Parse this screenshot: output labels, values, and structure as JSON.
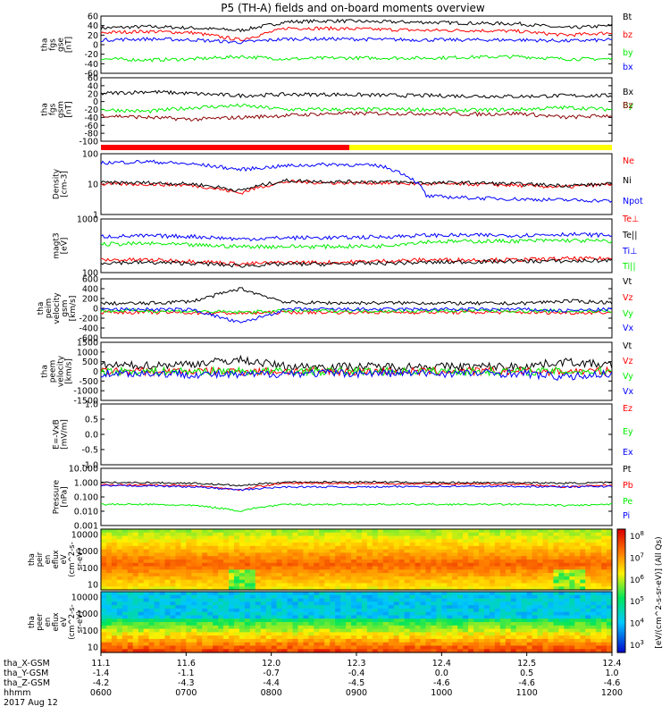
{
  "title": "P5 (TH-A) fields and on-board moments overview",
  "colors": {
    "black": "#000000",
    "red": "#ff0000",
    "green": "#00ee00",
    "blue": "#0000ff",
    "darkred": "#8b0000",
    "yellow": "#ffff00"
  },
  "status_bar": {
    "segments": [
      {
        "from": "06:00",
        "to": "08:55",
        "color": "red"
      },
      {
        "from": "08:55",
        "to": "12:00",
        "color": "yellow"
      }
    ]
  },
  "chart_data": {
    "type": "line",
    "time_range": [
      "2017-08-12 06:00",
      "2017-08-12 12:00"
    ],
    "grid": false,
    "panels": [
      {
        "id": "fgs",
        "ylabel": [
          "tha",
          "fgs",
          "gse",
          "[nT]"
        ],
        "ylim": [
          -60,
          60
        ],
        "ticks": [
          "60",
          "40",
          "20",
          "0",
          "-20",
          "-40",
          "-60"
        ],
        "series": [
          {
            "name": "Bt",
            "color": "black",
            "values": [
              35,
              38,
              35,
              30,
              48,
              50,
              48,
              47,
              45,
              44,
              35,
              40
            ]
          },
          {
            "name": "bz",
            "color": "red",
            "values": [
              25,
              28,
              25,
              10,
              35,
              34,
              32,
              30,
              30,
              28,
              20,
              25
            ]
          },
          {
            "name": "by",
            "color": "green",
            "values": [
              -30,
              -32,
              -30,
              -25,
              -30,
              -28,
              -28,
              -28,
              -26,
              -25,
              -30,
              -30
            ]
          },
          {
            "name": "bx",
            "color": "blue",
            "values": [
              10,
              12,
              10,
              5,
              12,
              12,
              11,
              10,
              10,
              10,
              8,
              10
            ]
          }
        ]
      },
      {
        "id": "fgs_gsm",
        "ylabel": [
          "tha",
          "fgs",
          "gsm",
          "[nT]"
        ],
        "ylim": [
          -100,
          60
        ],
        "ticks": [
          "60",
          "40",
          "20",
          "0",
          "-20",
          "-40",
          "-60",
          "-80",
          "-100"
        ],
        "series": [
          {
            "name": "Bx",
            "color": "black",
            "values": [
              20,
              25,
              20,
              15,
              18,
              18,
              16,
              15,
              14,
              13,
              15,
              15
            ]
          },
          {
            "name": "By",
            "color": "green",
            "values": [
              -20,
              -25,
              -15,
              -10,
              -20,
              -20,
              -20,
              -20,
              -22,
              -20,
              -15,
              -20
            ]
          },
          {
            "name": "Bz",
            "color": "darkred",
            "values": [
              -35,
              -40,
              -45,
              -40,
              -35,
              -30,
              -30,
              -30,
              -32,
              -30,
              -40,
              -35
            ]
          }
        ]
      },
      {
        "id": "density",
        "ylabel": [
          "Density",
          "[cm-3]"
        ],
        "scale": "log",
        "ylim": [
          1,
          100
        ],
        "ticks": [
          "100",
          "10",
          "1"
        ],
        "series": [
          {
            "name": "Ne",
            "color": "red",
            "values": [
              10,
              10,
              9,
              5,
              12,
              11,
              11,
              10,
              10,
              9,
              8,
              10
            ]
          },
          {
            "name": "Ni",
            "color": "black",
            "values": [
              11,
              11,
              10,
              6,
              13,
              12,
              12,
              11,
              11,
              10,
              9,
              10
            ]
          },
          {
            "name": "Npot",
            "color": "blue",
            "values": [
              50,
              55,
              45,
              30,
              40,
              45,
              40,
              4,
              3.5,
              3.2,
              3,
              2.8
            ]
          }
        ]
      },
      {
        "id": "temperature",
        "ylabel": [
          "magt3",
          "[eV]"
        ],
        "scale": "log",
        "ylim": [
          50,
          2000
        ],
        "ticks": [
          "1000",
          "100"
        ],
        "series": [
          {
            "name": "Te⊥",
            "color": "red",
            "values": [
              120,
              120,
              110,
              90,
              100,
              100,
              110,
              120,
              120,
              120,
              130,
              130
            ]
          },
          {
            "name": "Te||",
            "color": "black",
            "values": [
              100,
              100,
              95,
              80,
              90,
              90,
              95,
              100,
              105,
              110,
              110,
              115
            ]
          },
          {
            "name": "Ti⊥",
            "color": "blue",
            "values": [
              600,
              620,
              600,
              500,
              550,
              550,
              580,
              650,
              650,
              650,
              700,
              650
            ]
          },
          {
            "name": "Ti||",
            "color": "green",
            "values": [
              350,
              370,
              330,
              300,
              300,
              300,
              310,
              420,
              430,
              440,
              460,
              430
            ]
          }
        ]
      },
      {
        "id": "peim_velocity",
        "ylabel": [
          "tha",
          "peim",
          "velocity",
          "gsm",
          "[km/s]"
        ],
        "ylim": [
          -600,
          600
        ],
        "ticks": [
          "600",
          "400",
          "200",
          "0",
          "-200",
          "-400",
          "-600"
        ],
        "series": [
          {
            "name": "Vt",
            "color": "black",
            "values": [
              100,
              100,
              150,
              400,
              120,
              110,
              110,
              110,
              100,
              100,
              150,
              120
            ]
          },
          {
            "name": "Vz",
            "color": "red",
            "values": [
              -80,
              -80,
              -90,
              -100,
              -80,
              -80,
              -80,
              -80,
              -80,
              -80,
              -90,
              -80
            ]
          },
          {
            "name": "Vy",
            "color": "green",
            "values": [
              -50,
              -50,
              -60,
              -80,
              -50,
              -50,
              -50,
              -50,
              -50,
              -50,
              -60,
              -50
            ]
          },
          {
            "name": "Vx",
            "color": "blue",
            "values": [
              -20,
              -20,
              -30,
              -300,
              -20,
              -20,
              -20,
              -20,
              -20,
              -20,
              -50,
              -20
            ]
          }
        ]
      },
      {
        "id": "peem_velocity",
        "ylabel": [
          "tha",
          "peem",
          "velocity",
          "[km/s]"
        ],
        "ylim": [
          -1500,
          1500
        ],
        "ticks": [
          "1500",
          "1000",
          "500",
          "0",
          "-500",
          "-1000",
          "-1500"
        ],
        "series": [
          {
            "name": "Vt",
            "color": "black",
            "values": [
              300,
              300,
              400,
              600,
              250,
              250,
              250,
              250,
              250,
              250,
              500,
              300
            ]
          },
          {
            "name": "Vz",
            "color": "red",
            "values": [
              0,
              0,
              0,
              0,
              0,
              0,
              0,
              0,
              0,
              0,
              0,
              0
            ]
          },
          {
            "name": "Vy",
            "color": "green",
            "values": [
              0,
              0,
              0,
              0,
              0,
              0,
              0,
              0,
              0,
              0,
              0,
              0
            ]
          },
          {
            "name": "Vx",
            "color": "blue",
            "values": [
              -100,
              -100,
              -150,
              -200,
              -100,
              -100,
              -100,
              -100,
              -100,
              -100,
              -300,
              -100
            ]
          }
        ]
      },
      {
        "id": "efield",
        "ylabel": [
          "E=-VxB",
          "[mV/m]"
        ],
        "ylim": [
          -1,
          1
        ],
        "ticks": [
          "1.0",
          "0.5",
          "0.0",
          "-0.5",
          "-1.0"
        ],
        "series": [
          {
            "name": "Ez",
            "color": "red",
            "values": []
          },
          {
            "name": "Ey",
            "color": "green",
            "values": []
          },
          {
            "name": "Ex",
            "color": "blue",
            "values": []
          }
        ]
      },
      {
        "id": "pressure",
        "ylabel": [
          "Pressure",
          "[nPa]"
        ],
        "scale": "log",
        "ylim": [
          0.001,
          10
        ],
        "ticks": [
          "10.000",
          "1.000",
          "0.100",
          "0.010",
          "0.001"
        ],
        "series": [
          {
            "name": "Pt",
            "color": "black",
            "values": [
              1.0,
              1.0,
              0.9,
              0.6,
              1.1,
              1.1,
              1.1,
              1.0,
              1.0,
              1.0,
              0.9,
              1.0
            ]
          },
          {
            "name": "Pb",
            "color": "red",
            "values": [
              0.7,
              0.7,
              0.6,
              0.3,
              0.9,
              0.9,
              0.85,
              0.8,
              0.8,
              0.75,
              0.5,
              0.7
            ]
          },
          {
            "name": "Pe",
            "color": "green",
            "values": [
              0.03,
              0.03,
              0.025,
              0.01,
              0.03,
              0.03,
              0.03,
              0.03,
              0.03,
              0.03,
              0.025,
              0.03
            ]
          },
          {
            "name": "Pi",
            "color": "blue",
            "values": [
              0.6,
              0.6,
              0.5,
              0.3,
              0.5,
              0.5,
              0.5,
              0.55,
              0.55,
              0.55,
              0.5,
              0.55
            ]
          }
        ]
      }
    ],
    "spectrograms": [
      {
        "id": "peir",
        "ylabel": [
          "tha",
          "peir",
          "en",
          "eflux",
          "eV",
          "(cm^2-s-",
          "sr-eV)"
        ],
        "ylim": [
          5,
          30000
        ],
        "ticks": [
          "10000",
          "1000",
          "100",
          "10"
        ]
      },
      {
        "id": "peer",
        "ylabel": [
          "tha",
          "peer",
          "en",
          "eflux",
          "eV",
          "(cm^2-s-",
          "sr-eV)"
        ],
        "ylim": [
          5,
          30000
        ],
        "ticks": [
          "10000",
          "1000",
          "100",
          "10"
        ]
      }
    ],
    "colorbar": {
      "label": "[eV/(cm^2-s-sr-eV)] (All Qs)",
      "ticks": [
        "10^8",
        "10^7",
        "10^6",
        "10^5",
        "10^4",
        "10^3"
      ]
    },
    "x_axis": {
      "rows": [
        {
          "label": "tha_X-GSM",
          "values": [
            "11.1",
            "11.6",
            "12.0",
            "12.3",
            "12.4",
            "12.5",
            "12.4"
          ]
        },
        {
          "label": "tha_Y-GSM",
          "values": [
            "-1.4",
            "-1.1",
            "-0.7",
            "-0.4",
            "0.0",
            "0.5",
            "1.0"
          ]
        },
        {
          "label": "tha_Z-GSM",
          "values": [
            "-4.2",
            "-4.3",
            "-4.4",
            "-4.5",
            "-4.6",
            "-4.6",
            "-4.6"
          ]
        },
        {
          "label": "hhmm",
          "values": [
            "0600",
            "0700",
            "0800",
            "0900",
            "1000",
            "1100",
            "1200"
          ]
        }
      ],
      "date": "2017 Aug 12"
    }
  }
}
